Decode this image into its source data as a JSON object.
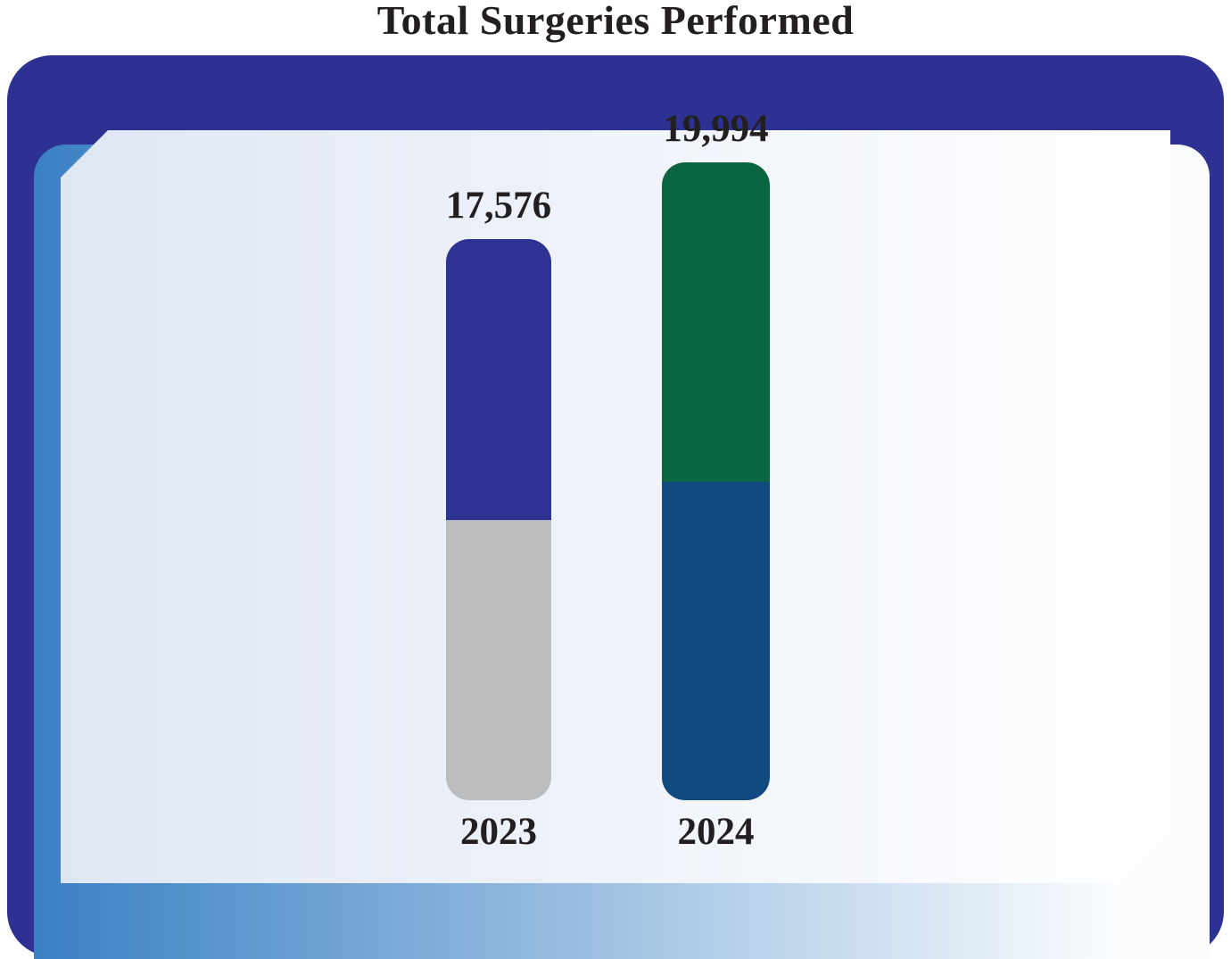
{
  "title": "Total Surgeries Performed",
  "colors": {
    "outer_border": "#2C3192",
    "frame_gradient_left": "#3A80C3",
    "frame_gradient_right": "#FAFCFE",
    "panel_gradient_left": "#E0E7F4",
    "panel_gradient_right": "#FDFEFF",
    "text": "#231F20",
    "bar_2023_top": "#2E3292",
    "bar_2023_bottom": "#BCBDBF",
    "bar_2024_top": "#0B6540",
    "bar_2024_bottom": "#114A7F"
  },
  "chart_data": {
    "type": "bar",
    "title": "Total Surgeries Performed",
    "categories": [
      "2023",
      "2024"
    ],
    "values": [
      17576,
      19994
    ],
    "value_labels": [
      "17,576",
      "19,994"
    ],
    "bars": [
      {
        "category": "2023",
        "total": 17576,
        "total_label": "17,576",
        "segments": [
          {
            "name": "upper",
            "color": "#2E3292",
            "fraction": 0.5
          },
          {
            "name": "lower",
            "color": "#BCBDBF",
            "fraction": 0.5
          }
        ]
      },
      {
        "category": "2024",
        "total": 19994,
        "total_label": "19,994",
        "segments": [
          {
            "name": "upper",
            "color": "#0B6540",
            "fraction": 0.5
          },
          {
            "name": "lower",
            "color": "#114A7F",
            "fraction": 0.5
          }
        ]
      }
    ],
    "xlabel": "",
    "ylabel": "",
    "ylim": [
      0,
      20000
    ],
    "grid": false,
    "axes_visible": false,
    "legend": "none"
  }
}
